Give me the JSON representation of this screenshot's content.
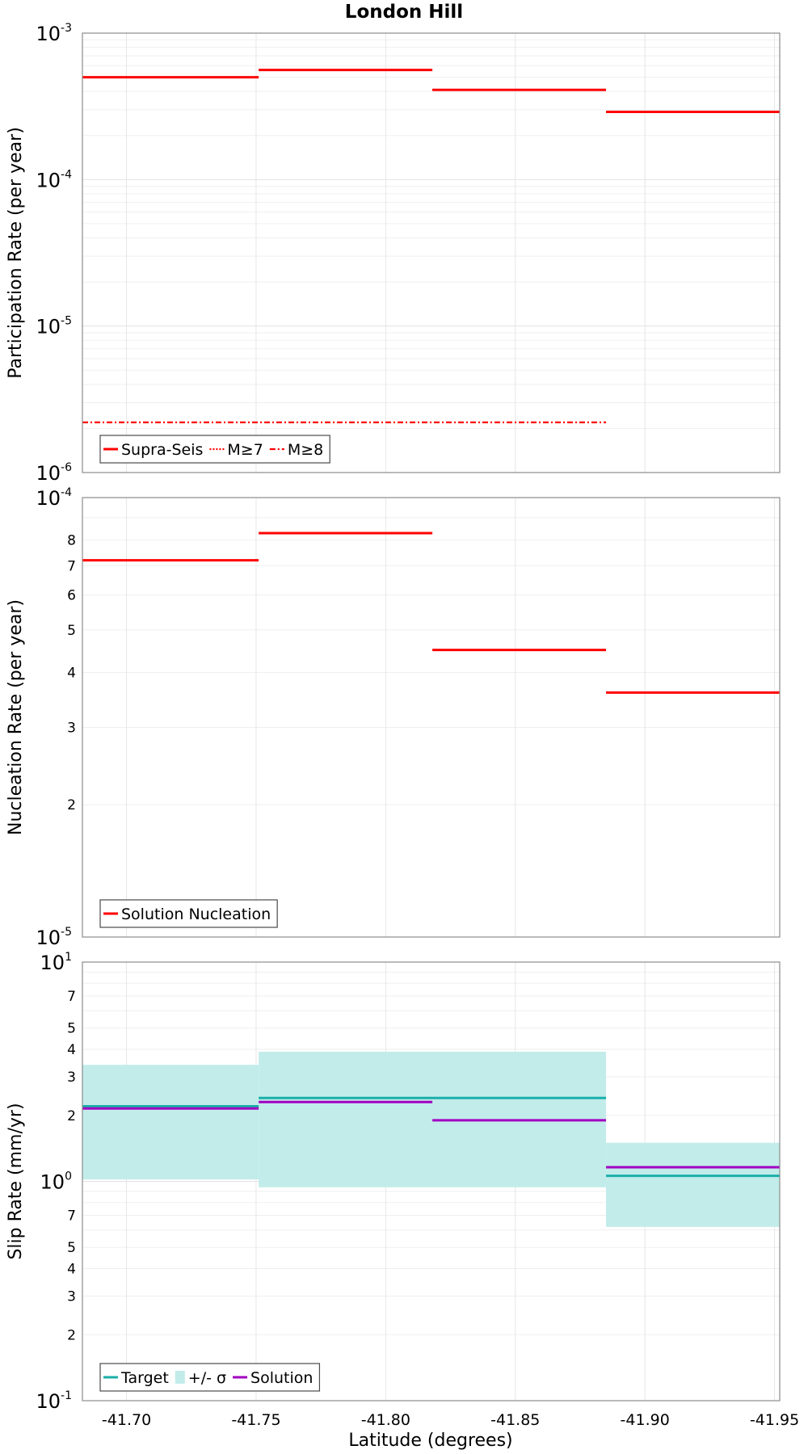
{
  "chart_data": {
    "type": "line",
    "title": "London Hill",
    "xlabel": "Latitude (degrees)",
    "x_ticks": [
      "-41.70",
      "-41.75",
      "-41.80",
      "-41.85",
      "-41.90",
      "-41.95"
    ],
    "x_tick_values": [
      -41.7,
      -41.75,
      -41.8,
      -41.85,
      -41.9,
      -41.95
    ],
    "xlim": [
      -41.683,
      -41.952
    ],
    "panels": [
      {
        "id": "participation",
        "ylabel": "Participation Rate (per year)",
        "yscale": "log",
        "ylim": [
          1e-06,
          0.001
        ],
        "major_ticks": [
          {
            "base": "10",
            "exp": "-6",
            "value": 1e-06
          },
          {
            "base": "10",
            "exp": "-5",
            "value": 1e-05
          },
          {
            "base": "10",
            "exp": "-4",
            "value": 0.0001
          },
          {
            "base": "10",
            "exp": "-3",
            "value": 0.001
          }
        ],
        "minor_ticks": [],
        "series": [
          {
            "name": "Supra-Seis",
            "color": "#ff0000",
            "style": "solid",
            "segments": [
              {
                "x0": -41.683,
                "x1": -41.751,
                "y": 0.0005
              },
              {
                "x0": -41.751,
                "x1": -41.818,
                "y": 0.00056
              },
              {
                "x0": -41.818,
                "x1": -41.885,
                "y": 0.00041
              },
              {
                "x0": -41.885,
                "x1": -41.952,
                "y": 0.00029
              }
            ]
          },
          {
            "name": "M≥7",
            "color": "#ff0000",
            "style": "dotted",
            "segments": [
              {
                "x0": -41.683,
                "x1": -41.751,
                "y": 0.0005
              },
              {
                "x0": -41.751,
                "x1": -41.818,
                "y": 0.00056
              },
              {
                "x0": -41.818,
                "x1": -41.885,
                "y": 0.00041
              },
              {
                "x0": -41.885,
                "x1": -41.952,
                "y": 0.00029
              }
            ]
          },
          {
            "name": "M≥8",
            "color": "#ff0000",
            "style": "dashdot",
            "segments": [
              {
                "x0": -41.683,
                "x1": -41.885,
                "y": 2.2e-06
              }
            ]
          }
        ],
        "legend": {
          "position": "bottom-left",
          "entries": [
            {
              "label": "Supra-Seis",
              "kind": "solid",
              "color": "#ff0000"
            },
            {
              "label": "M≥7",
              "kind": "dotted",
              "color": "#ff0000"
            },
            {
              "label": "M≥8",
              "kind": "dashdot",
              "color": "#ff0000"
            }
          ]
        }
      },
      {
        "id": "nucleation",
        "ylabel": "Nucleation Rate (per year)",
        "yscale": "log",
        "ylim": [
          1e-05,
          0.0001
        ],
        "major_ticks": [
          {
            "base": "10",
            "exp": "-5",
            "value": 1e-05
          },
          {
            "base": "10",
            "exp": "-4",
            "value": 0.0001
          }
        ],
        "minor_ticks": [
          {
            "label": "2",
            "value": 2e-05
          },
          {
            "label": "3",
            "value": 3e-05
          },
          {
            "label": "4",
            "value": 4e-05
          },
          {
            "label": "5",
            "value": 5e-05
          },
          {
            "label": "6",
            "value": 6e-05
          },
          {
            "label": "7",
            "value": 7e-05
          },
          {
            "label": "8",
            "value": 8e-05
          }
        ],
        "series": [
          {
            "name": "Solution Nucleation",
            "color": "#ff0000",
            "style": "solid",
            "segments": [
              {
                "x0": -41.683,
                "x1": -41.751,
                "y": 7.2e-05
              },
              {
                "x0": -41.751,
                "x1": -41.818,
                "y": 8.3e-05
              },
              {
                "x0": -41.818,
                "x1": -41.885,
                "y": 4.5e-05
              },
              {
                "x0": -41.885,
                "x1": -41.952,
                "y": 3.6e-05
              }
            ]
          }
        ],
        "legend": {
          "position": "bottom-left",
          "entries": [
            {
              "label": "Solution Nucleation",
              "kind": "solid",
              "color": "#ff0000"
            }
          ]
        }
      },
      {
        "id": "slip",
        "ylabel": "Slip Rate (mm/yr)",
        "yscale": "log",
        "ylim": [
          0.1,
          10
        ],
        "major_ticks": [
          {
            "base": "10",
            "exp": "-1",
            "value": 0.1
          },
          {
            "base": "10",
            "exp": "0",
            "value": 1
          },
          {
            "base": "10",
            "exp": "1",
            "value": 10
          }
        ],
        "minor_ticks": [
          {
            "label": "2",
            "value": 0.2
          },
          {
            "label": "3",
            "value": 0.3
          },
          {
            "label": "4",
            "value": 0.4
          },
          {
            "label": "5",
            "value": 0.5
          },
          {
            "label": "7",
            "value": 0.7
          },
          {
            "label": "2",
            "value": 2
          },
          {
            "label": "3",
            "value": 3
          },
          {
            "label": "4",
            "value": 4
          },
          {
            "label": "5",
            "value": 5
          },
          {
            "label": "7",
            "value": 7
          }
        ],
        "bands": [
          {
            "name": "+/- σ",
            "color": "#c2ecea",
            "segments": [
              {
                "x0": -41.683,
                "x1": -41.751,
                "y0": 1.02,
                "y1": 3.4
              },
              {
                "x0": -41.751,
                "x1": -41.885,
                "y0": 0.94,
                "y1": 3.9
              },
              {
                "x0": -41.885,
                "x1": -41.952,
                "y0": 0.62,
                "y1": 1.5
              }
            ]
          }
        ],
        "series": [
          {
            "name": "Target",
            "color": "#1aafaa",
            "style": "solid",
            "segments": [
              {
                "x0": -41.683,
                "x1": -41.751,
                "y": 2.2
              },
              {
                "x0": -41.751,
                "x1": -41.885,
                "y": 2.4
              },
              {
                "x0": -41.885,
                "x1": -41.952,
                "y": 1.06
              }
            ]
          },
          {
            "name": "Solution",
            "color": "#a100c2",
            "style": "solid",
            "segments": [
              {
                "x0": -41.683,
                "x1": -41.751,
                "y": 2.15
              },
              {
                "x0": -41.751,
                "x1": -41.818,
                "y": 2.3
              },
              {
                "x0": -41.818,
                "x1": -41.885,
                "y": 1.9
              },
              {
                "x0": -41.885,
                "x1": -41.952,
                "y": 1.16
              }
            ]
          }
        ],
        "legend": {
          "position": "bottom-left",
          "entries": [
            {
              "label": "Target",
              "kind": "solid",
              "color": "#1aafaa"
            },
            {
              "label": "+/- σ",
              "kind": "band",
              "color": "#c2ecea"
            },
            {
              "label": "Solution",
              "kind": "solid",
              "color": "#a100c2"
            }
          ]
        }
      }
    ]
  }
}
